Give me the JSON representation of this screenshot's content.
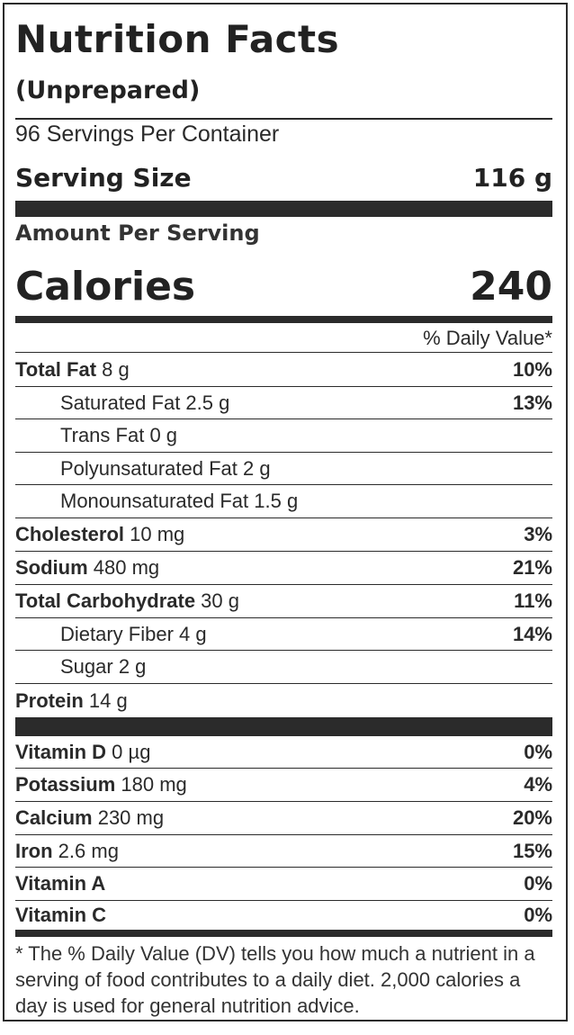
{
  "title": "Nutrition Facts",
  "subtitle": "(Unprepared)",
  "servings_per_container": "96 Servings Per Container",
  "serving_size": {
    "label": "Serving Size",
    "value": "116 g"
  },
  "amount_per_serving": "Amount Per Serving",
  "calories": {
    "label": "Calories",
    "value": "240"
  },
  "daily_value_header": "% Daily Value*",
  "nutrients": [
    {
      "name": "Total Fat",
      "amount": "8 g",
      "pct": "10%",
      "indent": false
    },
    {
      "name": "Saturated Fat",
      "amount": "2.5 g",
      "pct": "13%",
      "indent": true
    },
    {
      "name": "Trans Fat",
      "amount": "0 g",
      "pct": "",
      "indent": true
    },
    {
      "name": "Polyunsaturated Fat",
      "amount": "2 g",
      "pct": "",
      "indent": true
    },
    {
      "name": "Monounsaturated Fat",
      "amount": "1.5 g",
      "pct": "",
      "indent": true
    },
    {
      "name": "Cholesterol",
      "amount": "10 mg",
      "pct": "3%",
      "indent": false
    },
    {
      "name": "Sodium",
      "amount": "480 mg",
      "pct": "21%",
      "indent": false
    },
    {
      "name": "Total Carbohydrate",
      "amount": "30 g",
      "pct": "11%",
      "indent": false
    },
    {
      "name": "Dietary Fiber",
      "amount": "4 g",
      "pct": "14%",
      "indent": true
    },
    {
      "name": "Sugar",
      "amount": "2 g",
      "pct": "",
      "indent": true
    },
    {
      "name": "Protein",
      "amount": "14 g",
      "pct": "",
      "indent": false
    }
  ],
  "vitamins": [
    {
      "name": "Vitamin D",
      "amount": "0 µg",
      "pct": "0%"
    },
    {
      "name": "Potassium",
      "amount": "180 mg",
      "pct": "4%"
    },
    {
      "name": "Calcium",
      "amount": "230 mg",
      "pct": "20%"
    },
    {
      "name": "Iron",
      "amount": "2.6 mg",
      "pct": "15%"
    },
    {
      "name": "Vitamin A",
      "amount": "",
      "pct": "0%"
    },
    {
      "name": "Vitamin C",
      "amount": "",
      "pct": "0%"
    }
  ],
  "footnote": "* The % Daily Value (DV) tells you how much a nutrient in a serving of food contributes to a daily diet. 2,000 calories a day is used for general nutrition advice."
}
